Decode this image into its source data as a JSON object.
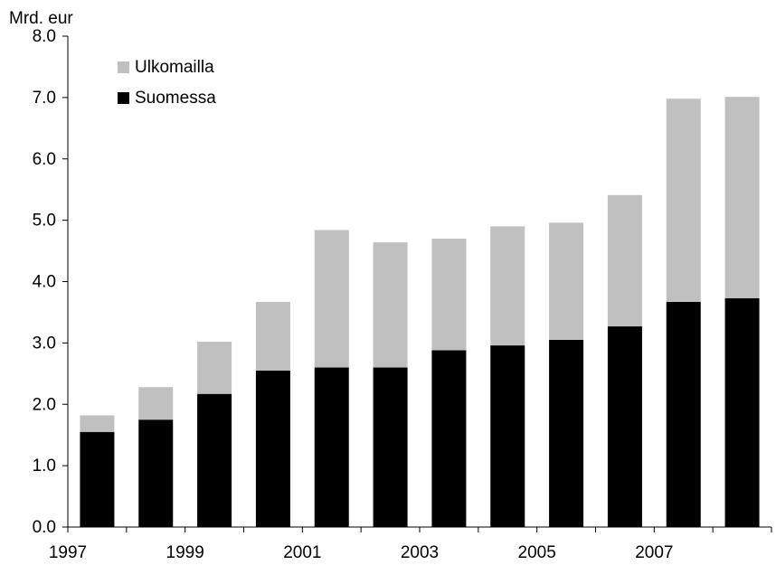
{
  "chart_data": {
    "type": "bar",
    "stacked": true,
    "title": "",
    "ylabel": "Mrd. eur",
    "xlabel": "",
    "ylim": [
      0,
      8
    ],
    "yticks": [
      "0.0",
      "1.0",
      "2.0",
      "3.0",
      "4.0",
      "5.0",
      "6.0",
      "7.0",
      "8.0"
    ],
    "categories": [
      "1997",
      "1998",
      "1999",
      "2000",
      "2001",
      "2002",
      "2003",
      "2004",
      "2005",
      "2006",
      "2007",
      "2008"
    ],
    "x_tick_labels": [
      "1997",
      "",
      "1999",
      "",
      "2001",
      "",
      "2003",
      "",
      "2005",
      "",
      "2007",
      ""
    ],
    "series": [
      {
        "name": "Suomessa",
        "color": "#000000",
        "values": [
          1.55,
          1.75,
          2.17,
          2.55,
          2.6,
          2.6,
          2.88,
          2.96,
          3.05,
          3.27,
          3.67,
          3.73
        ]
      },
      {
        "name": "Ulkomailla",
        "color": "#c0c0c0",
        "values": [
          0.27,
          0.53,
          0.85,
          1.12,
          2.24,
          2.04,
          1.82,
          1.94,
          1.91,
          2.14,
          3.31,
          3.28
        ]
      }
    ],
    "legend": {
      "position": "top-left",
      "order": [
        "Ulkomailla",
        "Suomessa"
      ]
    },
    "grid": false
  }
}
